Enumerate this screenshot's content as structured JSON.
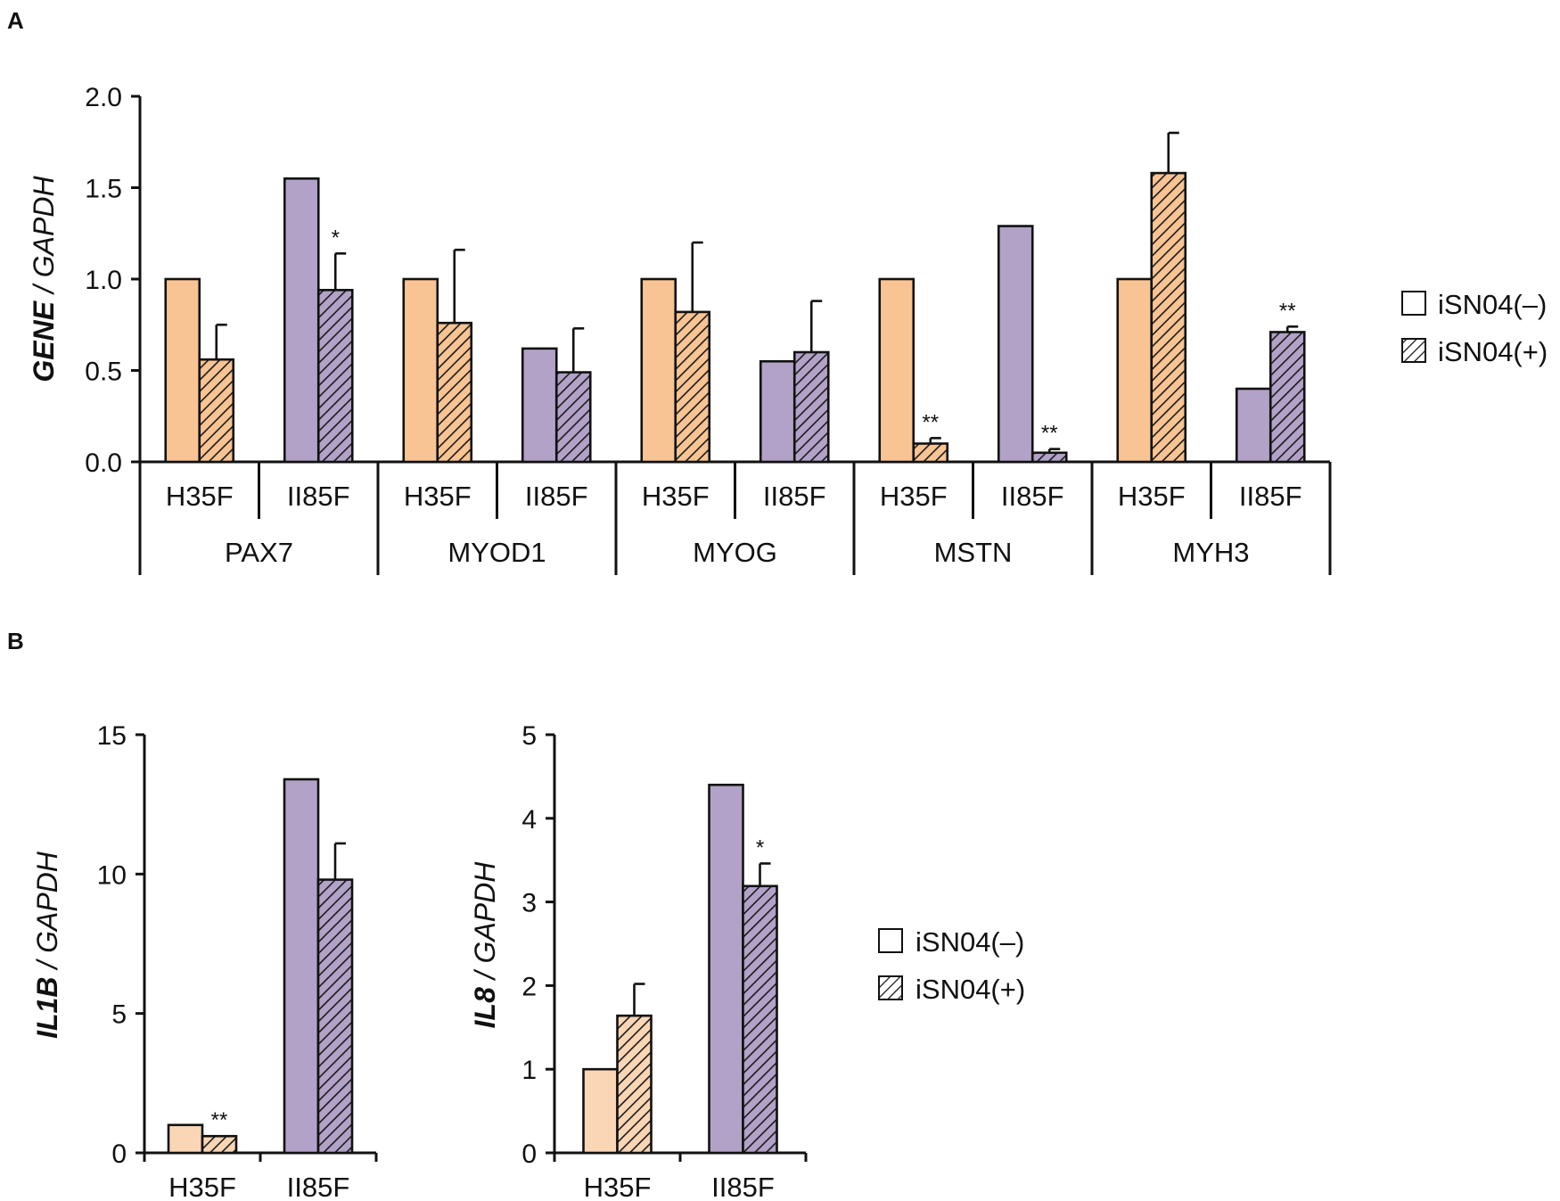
{
  "colors": {
    "orange": "#f8c493",
    "orange_light": "#fad6b5",
    "purple": "#b2a2c8",
    "hatch_line": "#1a1a1a"
  },
  "legend": {
    "minus": "iSN04(–)",
    "plus": "iSN04(+)"
  },
  "chart_data": [
    {
      "panel": "A",
      "type": "bar",
      "ylabel_bold": "GENE",
      "ylabel_rest": " / GAPDH",
      "ylim": [
        0,
        2.0
      ],
      "yticks": [
        "0.0",
        "0.5",
        "1.0",
        "1.5",
        "2.0"
      ],
      "ytick_values": [
        0,
        0.5,
        1.0,
        1.5,
        2.0
      ],
      "genes": [
        "PAX7",
        "MYOD1",
        "MYOG",
        "MSTN",
        "MYH3"
      ],
      "groups": [
        {
          "gene": "PAX7",
          "line": "H35F",
          "color": "orange",
          "minus": 1.0,
          "plus": 0.56,
          "plus_err": 0.19,
          "sig": ""
        },
        {
          "gene": "PAX7",
          "line": "II85F",
          "color": "purple",
          "minus": 1.55,
          "plus": 0.94,
          "plus_err": 0.2,
          "sig": "*"
        },
        {
          "gene": "MYOD1",
          "line": "H35F",
          "color": "orange",
          "minus": 1.0,
          "plus": 0.76,
          "plus_err": 0.4,
          "sig": ""
        },
        {
          "gene": "MYOD1",
          "line": "II85F",
          "color": "purple",
          "minus": 0.62,
          "plus": 0.49,
          "plus_err": 0.24,
          "sig": ""
        },
        {
          "gene": "MYOG",
          "line": "H35F",
          "color": "orange",
          "minus": 1.0,
          "plus": 0.82,
          "plus_err": 0.38,
          "sig": ""
        },
        {
          "gene": "MYOG",
          "line": "II85F",
          "color": "purple",
          "minus": 0.55,
          "plus": 0.6,
          "plus_err": 0.28,
          "sig": ""
        },
        {
          "gene": "MSTN",
          "line": "H35F",
          "color": "orange",
          "minus": 1.0,
          "plus": 0.1,
          "plus_err": 0.03,
          "sig": "**"
        },
        {
          "gene": "MSTN",
          "line": "II85F",
          "color": "purple",
          "minus": 1.29,
          "plus": 0.05,
          "plus_err": 0.02,
          "sig": "**"
        },
        {
          "gene": "MYH3",
          "line": "H35F",
          "color": "orange",
          "minus": 1.0,
          "plus": 1.58,
          "plus_err": 0.22,
          "sig": ""
        },
        {
          "gene": "MYH3",
          "line": "II85F",
          "color": "purple",
          "minus": 0.4,
          "plus": 0.71,
          "plus_err": 0.03,
          "sig": "**"
        }
      ]
    },
    {
      "panel": "B",
      "type": "bar",
      "ylabel_bold": "IL1B",
      "ylabel_rest": " / GAPDH",
      "ylim": [
        0,
        15
      ],
      "yticks": [
        "0",
        "5",
        "10",
        "15"
      ],
      "ytick_values": [
        0,
        5,
        10,
        15
      ],
      "groups": [
        {
          "line": "H35F",
          "color": "orange_light",
          "minus": 1.0,
          "plus": 0.6,
          "plus_err": 0.0,
          "sig": "**"
        },
        {
          "line": "II85F",
          "color": "purple",
          "minus": 13.4,
          "plus": 9.8,
          "plus_err": 1.3,
          "sig": ""
        }
      ]
    },
    {
      "panel": "B",
      "type": "bar",
      "ylabel_bold": "IL8",
      "ylabel_rest": " / GAPDH",
      "ylim": [
        0,
        5
      ],
      "yticks": [
        "0",
        "1",
        "2",
        "3",
        "4",
        "5"
      ],
      "ytick_values": [
        0,
        1,
        2,
        3,
        4,
        5
      ],
      "groups": [
        {
          "line": "H35F",
          "color": "orange_light",
          "minus": 1.0,
          "plus": 1.64,
          "plus_err": 0.38,
          "sig": ""
        },
        {
          "line": "II85F",
          "color": "purple",
          "minus": 4.4,
          "plus": 3.19,
          "plus_err": 0.27,
          "sig": "*"
        }
      ]
    }
  ]
}
